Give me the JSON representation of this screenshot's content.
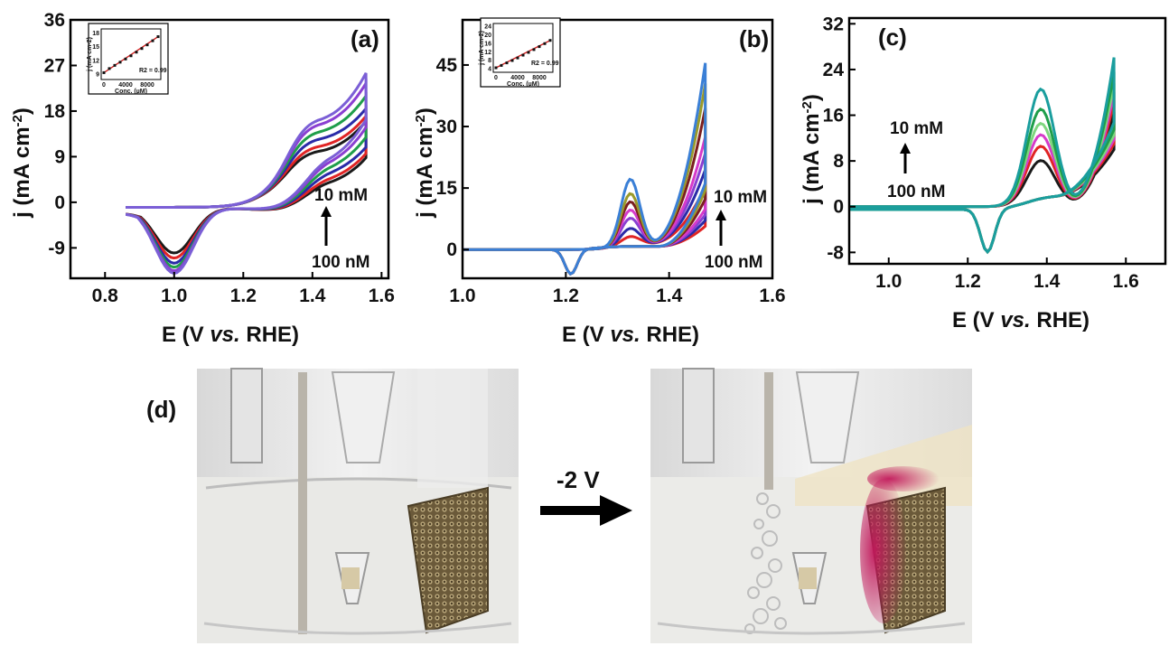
{
  "chart_data": [
    {
      "type": "line",
      "panel_label": "(a)",
      "title": "",
      "xlabel": "E (V vs. RHE)",
      "ylabel": "j (mA cm-2)",
      "xlim": [
        0.7,
        1.62
      ],
      "ylim": [
        -15,
        36
      ],
      "xticks": [
        0.8,
        1.0,
        1.2,
        1.4,
        1.6
      ],
      "yticks": [
        -9,
        0,
        9,
        18,
        27,
        36
      ],
      "xtick_labels": [
        "0.8",
        "1.0",
        "1.2",
        "1.4",
        "1.6"
      ],
      "ytick_labels": [
        "-9",
        "0",
        "9",
        "18",
        "27",
        "36"
      ],
      "legend": "none",
      "annotations": {
        "top": "10 mM",
        "bottom": "100 nM"
      },
      "series": [
        {
          "color": "#1a1a1a",
          "cathodic_peak": -9.0,
          "anodic_peak": 10.0,
          "end_current": 15.5
        },
        {
          "color": "#e02424",
          "cathodic_peak": -10.0,
          "anodic_peak": 11.0,
          "end_current": 16.5
        },
        {
          "color": "#2a2aa8",
          "cathodic_peak": -11.0,
          "anodic_peak": 12.5,
          "end_current": 18.0
        },
        {
          "color": "#1f9e4a",
          "cathodic_peak": -11.8,
          "anodic_peak": 14.0,
          "end_current": 20.5
        },
        {
          "color": "#8a3fd1",
          "cathodic_peak": -12.5,
          "anodic_peak": 15.5,
          "end_current": 23.0
        },
        {
          "color": "#7b5fd6",
          "cathodic_peak": -13.0,
          "anodic_peak": 16.5,
          "end_current": 25.0
        }
      ],
      "inset": {
        "xlabel": "Conc. (µM)",
        "ylabel": "j (mA cm-2)",
        "xticks": [
          0,
          4000,
          8000
        ],
        "yticks": [
          9,
          12,
          15,
          18
        ],
        "r2": "R2 = 0.99",
        "x": [
          0,
          1000,
          2000,
          3000,
          4000,
          5000,
          6000,
          7000,
          8000,
          9000,
          10000
        ],
        "y": [
          9.3,
          10.2,
          10.9,
          11.6,
          12.3,
          13.0,
          13.8,
          14.6,
          15.4,
          16.3,
          17.2
        ]
      }
    },
    {
      "type": "line",
      "panel_label": "(b)",
      "title": "",
      "xlabel": "E (V vs. RHE)",
      "ylabel": "j (mA cm-2)",
      "xlim": [
        1.0,
        1.6
      ],
      "ylim": [
        -7,
        56
      ],
      "xticks": [
        1.0,
        1.2,
        1.4,
        1.6
      ],
      "yticks": [
        0,
        15,
        30,
        45
      ],
      "xtick_labels": [
        "1.0",
        "1.2",
        "1.4",
        "1.6"
      ],
      "ytick_labels": [
        "0",
        "15",
        "30",
        "45"
      ],
      "legend": "none",
      "annotations": {
        "top": "10 mM",
        "bottom": "100 nM"
      },
      "series": [
        {
          "color": "#e02424",
          "anodic_peak": 2.0,
          "end_current": 14.0
        },
        {
          "color": "#2a2aa8",
          "anodic_peak": 4.0,
          "end_current": 18.0
        },
        {
          "color": "#8a3fd1",
          "anodic_peak": 6.5,
          "end_current": 22.0
        },
        {
          "color": "#d63bc9",
          "anodic_peak": 8.5,
          "end_current": 26.0
        },
        {
          "color": "#7a1f1f",
          "anodic_peak": 10.5,
          "end_current": 33.0
        },
        {
          "color": "#9a9a2a",
          "anodic_peak": 12.5,
          "end_current": 39.0
        },
        {
          "color": "#3a7fd6",
          "anodic_peak": 16.0,
          "end_current": 44.0
        }
      ],
      "inset": {
        "xlabel": "Conc. (µM)",
        "ylabel": "j (mA cm-2)",
        "xticks": [
          0,
          4000,
          8000
        ],
        "yticks": [
          4,
          8,
          12,
          16,
          20,
          24
        ],
        "r2": "R2 = 0.99",
        "x": [
          0,
          1000,
          2000,
          3000,
          4000,
          5000,
          6000,
          7000,
          8000,
          9000,
          10000
        ],
        "y": [
          4.5,
          5.6,
          6.8,
          7.9,
          9.1,
          10.4,
          11.7,
          13.0,
          14.4,
          15.8,
          17.3
        ]
      }
    },
    {
      "type": "line",
      "panel_label": "(c)",
      "title": "",
      "xlabel": "E (V vs. RHE)",
      "ylabel": "j (mA cm-2)",
      "xlim": [
        0.9,
        1.7
      ],
      "ylim": [
        -10,
        33
      ],
      "xticks": [
        1.0,
        1.2,
        1.4,
        1.6
      ],
      "yticks": [
        -8,
        0,
        8,
        16,
        24,
        32
      ],
      "xtick_labels": [
        "1.0",
        "1.2",
        "1.4",
        "1.6"
      ],
      "ytick_labels": [
        "-8",
        "0",
        "8",
        "16",
        "24",
        "32"
      ],
      "legend": "none",
      "annotations": {
        "top": "10 mM",
        "bottom": "100 nM"
      },
      "series": [
        {
          "color": "#1a1a1a",
          "anodic_peak": 7.5,
          "end_current": 16.0
        },
        {
          "color": "#e02424",
          "anodic_peak": 10.0,
          "end_current": 18.0
        },
        {
          "color": "#d63bc9",
          "anodic_peak": 12.0,
          "end_current": 19.5
        },
        {
          "color": "#7fd67f",
          "anodic_peak": 14.0,
          "end_current": 21.0
        },
        {
          "color": "#1f9e4a",
          "anodic_peak": 16.5,
          "end_current": 23.0
        },
        {
          "color": "#1a9e9e",
          "anodic_peak": 20.0,
          "end_current": 25.5
        }
      ]
    }
  ],
  "photo": {
    "panel_label": "(d)",
    "arrow_label": "-2 V"
  },
  "colors": {
    "axis": "#000000",
    "foam": "#6b5a3a",
    "pink_deposit": "#c2185b",
    "background": "#ffffff"
  }
}
